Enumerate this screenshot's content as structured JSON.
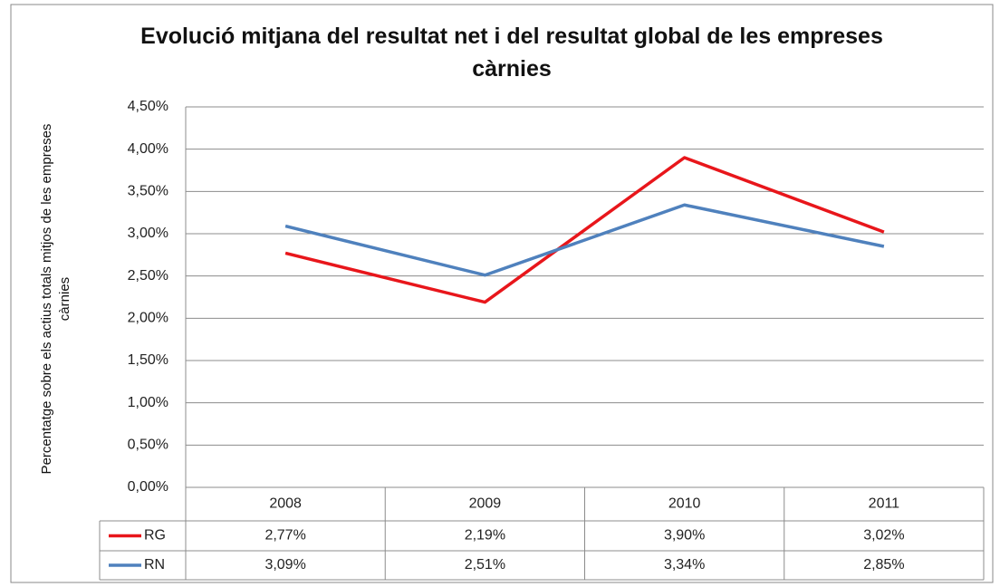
{
  "chart_data": {
    "type": "line",
    "title": "Evolució mitjana del resultat net i del resultat global de les empreses càrnies",
    "y_label": "Percentatge sobre els actius totals mitjos de les empreses càrnies",
    "categories": [
      "2008",
      "2009",
      "2010",
      "2011"
    ],
    "series": [
      {
        "name": "RG",
        "color": "#e8161b",
        "values": [
          2.77,
          2.19,
          3.9,
          3.02
        ],
        "value_labels": [
          "2,77%",
          "2,19%",
          "3,90%",
          "3,02%"
        ]
      },
      {
        "name": "RN",
        "color": "#4f81bd",
        "values": [
          3.09,
          2.51,
          3.34,
          2.85
        ],
        "value_labels": [
          "3,09%",
          "2,51%",
          "3,34%",
          "2,85%"
        ]
      }
    ],
    "ylim": [
      0,
      4.5
    ],
    "yticks": [
      {
        "value": 0,
        "label": "0,00%"
      },
      {
        "value": 0.5,
        "label": "0,50%"
      },
      {
        "value": 1,
        "label": "1,00%"
      },
      {
        "value": 1.5,
        "label": "1,50%"
      },
      {
        "value": 2,
        "label": "2,00%"
      },
      {
        "value": 2.5,
        "label": "2,50%"
      },
      {
        "value": 3,
        "label": "3,00%"
      },
      {
        "value": 3.5,
        "label": "3,50%"
      },
      {
        "value": 4,
        "label": "4,00%"
      },
      {
        "value": 4.5,
        "label": "4,50%"
      }
    ],
    "grid": true,
    "data_table": true
  }
}
